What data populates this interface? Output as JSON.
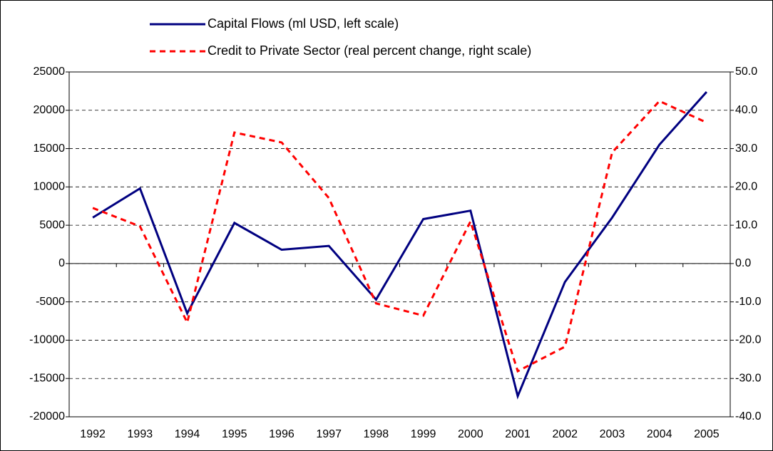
{
  "chart_data": {
    "type": "line",
    "categories": [
      "1992",
      "1993",
      "1994",
      "1995",
      "1996",
      "1997",
      "1998",
      "1999",
      "2000",
      "2001",
      "2002",
      "2003",
      "2004",
      "2005"
    ],
    "series": [
      {
        "name": "Capital Flows (ml USD, left scale)",
        "color": "#000080",
        "dash": false,
        "values": [
          6000,
          9800,
          -6500,
          5300,
          1800,
          2300,
          -4700,
          5800,
          6900,
          -17300,
          -2400,
          6000,
          15500,
          22400
        ]
      },
      {
        "name": "Credit to Private Sector (real percent change, right scale)",
        "color": "#ff0000",
        "dash": true,
        "axis": "y2",
        "values": [
          14.5,
          9.7,
          -15.4,
          34.2,
          31.6,
          17.1,
          -10.4,
          -13.6,
          11.0,
          -28.1,
          -21.7,
          29.0,
          42.4,
          36.8
        ]
      }
    ],
    "ylim": [
      -20000,
      25000
    ],
    "yticks": [
      -20000,
      -15000,
      -10000,
      -5000,
      0,
      5000,
      10000,
      15000,
      20000,
      25000
    ],
    "y2lim": [
      -40,
      50
    ],
    "y2ticks": [
      {
        "value": -40,
        "label": "-40.0"
      },
      {
        "value": -30,
        "label": "-30.0"
      },
      {
        "value": -20,
        "label": "-20.0"
      },
      {
        "value": -10,
        "label": "-10.0"
      },
      {
        "value": 0,
        "label": "0.0"
      },
      {
        "value": 10,
        "label": "10.0"
      },
      {
        "value": 20,
        "label": "20.0"
      },
      {
        "value": 30,
        "label": "30.0"
      },
      {
        "value": 40,
        "label": "40.0"
      },
      {
        "value": 50,
        "label": "50.0"
      }
    ],
    "grid": true
  }
}
